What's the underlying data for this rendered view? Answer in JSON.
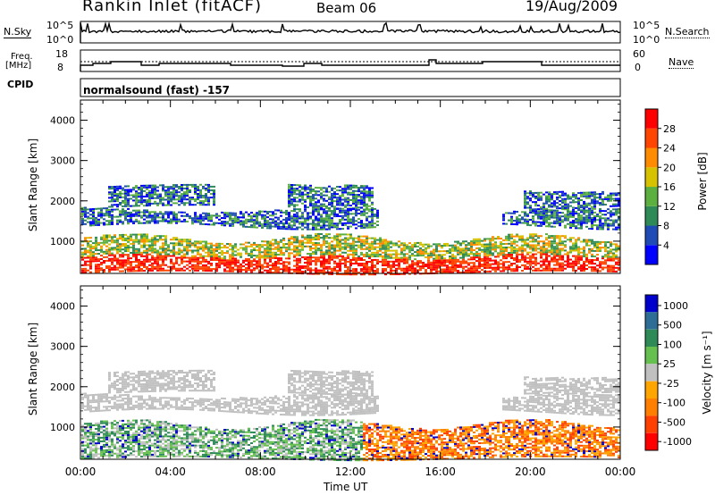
{
  "header": {
    "title": "Rankin Inlet (fitACF)",
    "beam": "Beam 06",
    "date": "19/Aug/2009"
  },
  "sky_panel": {
    "left_label": "N.Sky",
    "ticks_left": [
      "10^5",
      "10^0"
    ],
    "ticks_right": [
      "10^5",
      "10^0"
    ],
    "right_label": "N.Search"
  },
  "freq_panel": {
    "left_label": "Freq.",
    "left_unit": "[MHz]",
    "ticks_left": [
      "18",
      "8"
    ],
    "ticks_right": [
      "60",
      "0"
    ],
    "right_label": "Nave"
  },
  "cpid": {
    "label": "CPID",
    "text": "normalsound (fast) -157"
  },
  "colors": {
    "power": [
      "#0000ff",
      "#1e4bb4",
      "#2e8b57",
      "#5cb040",
      "#d7c200",
      "#ff8c00",
      "#ff4500",
      "#ff0000"
    ],
    "velocity": [
      "#0000cd",
      "#2e6e96",
      "#2e8b57",
      "#66c050",
      "#c0c0c0",
      "#ffa500",
      "#ff7f00",
      "#ff4000",
      "#ff0000"
    ]
  },
  "chart_data": [
    {
      "type": "heatmap",
      "name": "power",
      "ylabel": "Slant Range [km]",
      "xlabel": "Time UT",
      "x_ticks": [
        "00:00",
        "04:00",
        "08:00",
        "12:00",
        "16:00",
        "20:00",
        "00:00"
      ],
      "y_ticks": [
        1000,
        2000,
        3000,
        4000
      ],
      "ylim": [
        200,
        4500
      ],
      "colorbar_label": "Power [dB]",
      "colorbar_ticks": [
        "4",
        "8",
        "12",
        "16",
        "20",
        "24",
        "28"
      ]
    },
    {
      "type": "heatmap",
      "name": "velocity",
      "ylabel": "Slant Range [km]",
      "xlabel": "Time UT",
      "x_ticks": [
        "00:00",
        "04:00",
        "08:00",
        "12:00",
        "16:00",
        "20:00",
        "00:00"
      ],
      "y_ticks": [
        1000,
        2000,
        3000,
        4000
      ],
      "ylim": [
        200,
        4500
      ],
      "colorbar_label": "Velocity [m s⁻¹]",
      "colorbar_ticks": [
        "1000",
        "500",
        "100",
        "25",
        "-25",
        "-100",
        "-500",
        "-1000"
      ]
    }
  ]
}
